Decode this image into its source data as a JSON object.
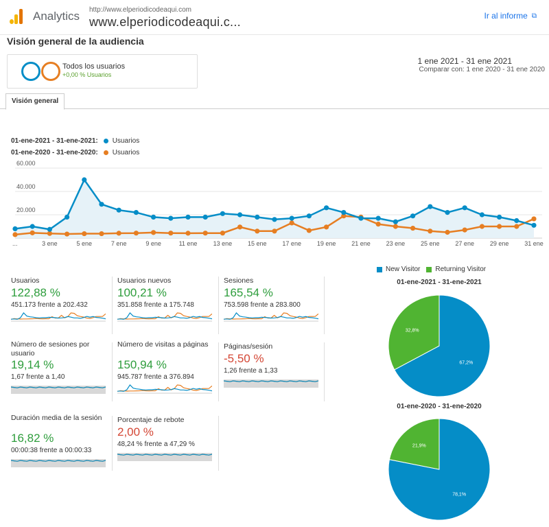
{
  "header": {
    "app_name": "Analytics",
    "url_small": "http://www.elperiodicodeaqui.com",
    "url_big": "www.elperiodicodeaqui.c...",
    "report_link": "Ir al informe"
  },
  "page_title": "Visión general de la audiencia",
  "segment": {
    "name": "Todos los usuarios",
    "change": "+0,00 % Usuarios"
  },
  "date_range": {
    "main": "1 ene 2021 - 31 ene 2021",
    "compare": "Comparar con: 1 ene 2020 - 31 ene 2020"
  },
  "tab": "Visión general",
  "legend": [
    {
      "range": "01-ene-2021 - 31-ene-2021:",
      "label": "Usuarios",
      "color": "#058dc7"
    },
    {
      "range": "01-ene-2020 - 31-ene-2020:",
      "label": "Usuarios",
      "color": "#e67e22"
    }
  ],
  "chart_data": {
    "type": "line",
    "x_labels": [
      "...",
      "3 ene",
      "5 ene",
      "7 ene",
      "9 ene",
      "11 ene",
      "13 ene",
      "15 ene",
      "17 ene",
      "19 ene",
      "21 ene",
      "23 ene",
      "25 ene",
      "27 ene",
      "29 ene",
      "31 ene"
    ],
    "y_ticks": [
      "60.000",
      "40.000",
      "20.000"
    ],
    "ylim": [
      0,
      60000
    ],
    "series": [
      {
        "name": "Usuarios",
        "color": "#058dc7",
        "values": [
          8000,
          10000,
          7500,
          18000,
          50000,
          29000,
          24000,
          22000,
          18000,
          17000,
          18000,
          18000,
          21000,
          20000,
          18000,
          16000,
          17000,
          19000,
          26000,
          22000,
          17000,
          17000,
          14000,
          19000,
          27000,
          22000,
          26000,
          20000,
          18000,
          15000,
          11000
        ]
      },
      {
        "name": "Usuarios",
        "color": "#e67e22",
        "values": [
          3000,
          4500,
          4000,
          3500,
          3800,
          3800,
          4200,
          4300,
          4800,
          4300,
          4200,
          4300,
          4300,
          9500,
          6000,
          6000,
          13000,
          6500,
          9500,
          19000,
          18000,
          12000,
          10000,
          8500,
          6000,
          5000,
          7000,
          10000,
          10000,
          10000,
          16500
        ]
      }
    ]
  },
  "metrics": [
    {
      "name": "Usuarios",
      "value": "122,88 %",
      "compare": "451.173 frente a 202.432",
      "trend": "up"
    },
    {
      "name": "Usuarios nuevos",
      "value": "100,21 %",
      "compare": "351.858 frente a 175.748",
      "trend": "up"
    },
    {
      "name": "Sesiones",
      "value": "165,54 %",
      "compare": "753.598 frente a 283.800",
      "trend": "up"
    },
    {
      "name": "Número de sesiones por usuario",
      "value": "19,14 %",
      "compare": "1,67 frente a 1,40",
      "trend": "up"
    },
    {
      "name": "Número de visitas a páginas",
      "value": "150,94 %",
      "compare": "945.787 frente a 376.894",
      "trend": "up"
    },
    {
      "name": "Páginas/sesión",
      "value": "-5,50 %",
      "compare": "1,26 frente a 1,33",
      "trend": "down"
    },
    {
      "name": "Duración media de la sesión",
      "value": "16,82 %",
      "compare": "00:00:38 frente a 00:00:33",
      "trend": "up"
    },
    {
      "name": "Porcentaje de rebote",
      "value": "2,00 %",
      "compare": "48,24 % frente a 47,29 %",
      "trend": "down"
    }
  ],
  "pie_legend": [
    {
      "label": "New Visitor",
      "color": "#058dc7"
    },
    {
      "label": "Returning Visitor",
      "color": "#50b432"
    }
  ],
  "pies": [
    {
      "title": "01-ene-2021 - 31-ene-2021",
      "new_pct": 67.2,
      "returning_pct": 32.8,
      "new_label": "67,2%",
      "returning_label": "32,8%"
    },
    {
      "title": "01-ene-2020 - 31-ene-2020",
      "new_pct": 78.1,
      "returning_pct": 21.9,
      "new_label": "78,1%",
      "returning_label": "21,9%"
    }
  ],
  "colors": {
    "up": "#2e9d3c",
    "down": "#d44735",
    "blue": "#058dc7",
    "orange": "#e67e22",
    "green": "#50b432"
  }
}
